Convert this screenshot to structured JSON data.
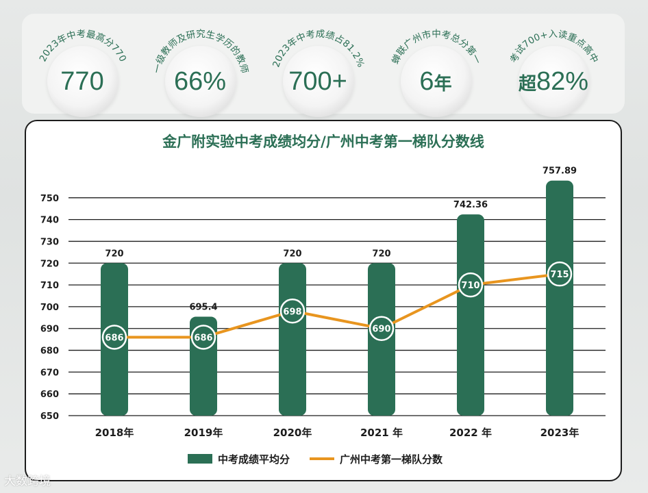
{
  "stats": [
    {
      "label": "2023年中考最高分770",
      "value": "770",
      "prefix": "",
      "suffix": ""
    },
    {
      "label": "一级教师及研究生学历的教师",
      "value": "66%",
      "prefix": "",
      "suffix": ""
    },
    {
      "label": "2023年中考成绩占81.2%",
      "value": "700+",
      "prefix": "",
      "suffix": ""
    },
    {
      "label": "蝉联广州市中考总分第一",
      "value": "6",
      "prefix": "",
      "suffix": "年"
    },
    {
      "label": "考试700+入读重点高中",
      "value": "82%",
      "prefix": "超",
      "suffix": ""
    }
  ],
  "watermark": "大数跨境",
  "chart_data": {
    "type": "bar",
    "title": "金广附实验中考成绩均分/广州中考第一梯队分数线",
    "categories": [
      "2018年",
      "2019年",
      "2020年",
      "2021 年",
      "2022 年",
      "2023年"
    ],
    "series": [
      {
        "name": "中考成绩平均分",
        "type": "bar",
        "color": "#2b6f55",
        "values": [
          720,
          695.4,
          720,
          720,
          742.36,
          757.89
        ],
        "labels": [
          "720",
          "695.4",
          "720",
          "720",
          "742.36",
          "757.89"
        ]
      },
      {
        "name": "广州中考第一梯队分数",
        "type": "line",
        "color": "#e8951f",
        "values": [
          686,
          686,
          698,
          690,
          710,
          715
        ],
        "labels": [
          "686",
          "686",
          "698",
          "690",
          "710",
          "715"
        ]
      }
    ],
    "yticks": [
      "650",
      "660",
      "670",
      "680",
      "690",
      "700",
      "710",
      "720",
      "730",
      "740",
      "750"
    ],
    "ylim": [
      650,
      760
    ],
    "grid": true,
    "legend": "bottom"
  }
}
